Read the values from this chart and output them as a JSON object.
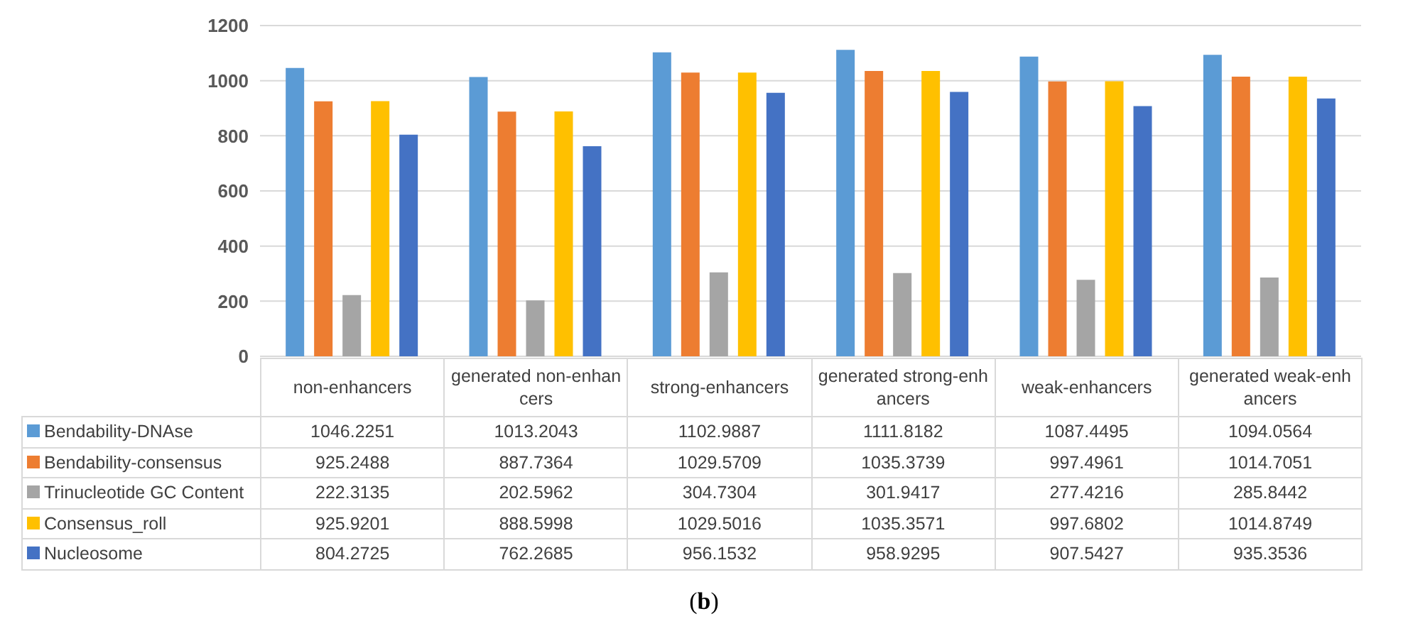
{
  "chart_data": {
    "type": "bar",
    "categories": [
      "non-enhancers",
      "generated non-enhancers",
      "strong-enhancers",
      "generated strong-enhancers",
      "weak-enhancers",
      "generated weak-enhancers"
    ],
    "series": [
      {
        "name": "Bendability-DNAse",
        "color": "#5b9bd5",
        "values": [
          1046.2251,
          1013.2043,
          1102.9887,
          1111.8182,
          1087.4495,
          1094.0564
        ]
      },
      {
        "name": "Bendability-consensus",
        "color": "#ed7d31",
        "values": [
          925.2488,
          887.7364,
          1029.5709,
          1035.3739,
          997.4961,
          1014.7051
        ]
      },
      {
        "name": "Trinucleotide GC Content",
        "color": "#a5a5a5",
        "values": [
          222.3135,
          202.5962,
          304.7304,
          301.9417,
          277.4216,
          285.8442
        ]
      },
      {
        "name": "Consensus_roll",
        "color": "#ffc000",
        "values": [
          925.9201,
          888.5998,
          1029.5016,
          1035.3571,
          997.6802,
          1014.8749
        ]
      },
      {
        "name": "Nucleosome",
        "color": "#4472c4",
        "values": [
          804.2725,
          762.2685,
          956.1532,
          958.9295,
          907.5427,
          935.3536
        ]
      }
    ],
    "ylim": [
      0,
      1200
    ],
    "yticks": [
      0,
      200,
      400,
      600,
      800,
      1000,
      1200
    ],
    "grid": "y",
    "legend": "bottom",
    "data_labels": true,
    "annotations": [
      "(b)"
    ]
  }
}
